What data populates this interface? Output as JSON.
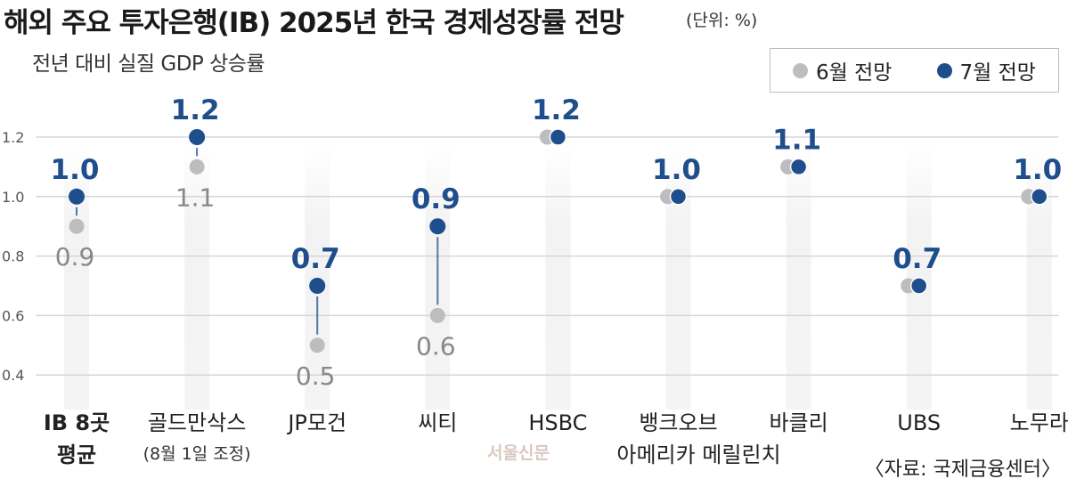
{
  "header": {
    "title": "해외 주요 투자은행(IB) 2025년 한국 경제성장률 전망",
    "unit": "(단위: %)",
    "subtitle": "전년 대비 실질 GDP 상승률"
  },
  "source": "〈자료: 국제금융센터〉",
  "watermark": "서울신문",
  "colors": {
    "june": "#bdbdbd",
    "july": "#1f4e8c",
    "grid": "#d6d6d6"
  },
  "chart_data": {
    "type": "scatter",
    "title": "해외 주요 투자은행(IB) 2025년 한국 경제성장률 전망",
    "subtitle": "전년 대비 실질 GDP 상승률",
    "ylabel": "",
    "ylim": [
      0.3,
      1.3
    ],
    "yticks": [
      0.4,
      0.6,
      0.8,
      1.0,
      1.2
    ],
    "ytick_labels": [
      "0.4",
      "0.6",
      "0.8",
      "1.0",
      "1.2"
    ],
    "grid": true,
    "legend_position": "top-right",
    "categories": [
      "IB 8곳 평균",
      "골드만삭스",
      "JP모건",
      "씨티",
      "HSBC",
      "뱅크오브아메리카 메릴린치",
      "바클리",
      "UBS",
      "노무라"
    ],
    "category_lines": [
      [
        "IB 8곳",
        "평균"
      ],
      [
        "골드만삭스",
        "(8월 1일 조정)"
      ],
      [
        "JP모건"
      ],
      [
        "씨티"
      ],
      [
        "HSBC"
      ],
      [
        "뱅크오브",
        "아메리카 메릴린치"
      ],
      [
        "바클리"
      ],
      [
        "UBS"
      ],
      [
        "노무라"
      ]
    ],
    "series": [
      {
        "name": "6월 전망",
        "values": [
          0.9,
          1.1,
          0.5,
          0.6,
          1.2,
          1.0,
          1.1,
          0.7,
          1.0
        ]
      },
      {
        "name": "7월 전망",
        "values": [
          1.0,
          1.2,
          0.7,
          0.9,
          1.2,
          1.0,
          1.1,
          0.7,
          1.0
        ]
      }
    ],
    "june_labels": [
      "0.9",
      "1.1",
      "0.5",
      "0.6",
      "",
      "",
      "",
      "",
      ""
    ],
    "july_labels": [
      "1.0",
      "1.2",
      "0.7",
      "0.9",
      "1.2",
      "1.0",
      "1.1",
      "0.7",
      "1.0"
    ]
  }
}
